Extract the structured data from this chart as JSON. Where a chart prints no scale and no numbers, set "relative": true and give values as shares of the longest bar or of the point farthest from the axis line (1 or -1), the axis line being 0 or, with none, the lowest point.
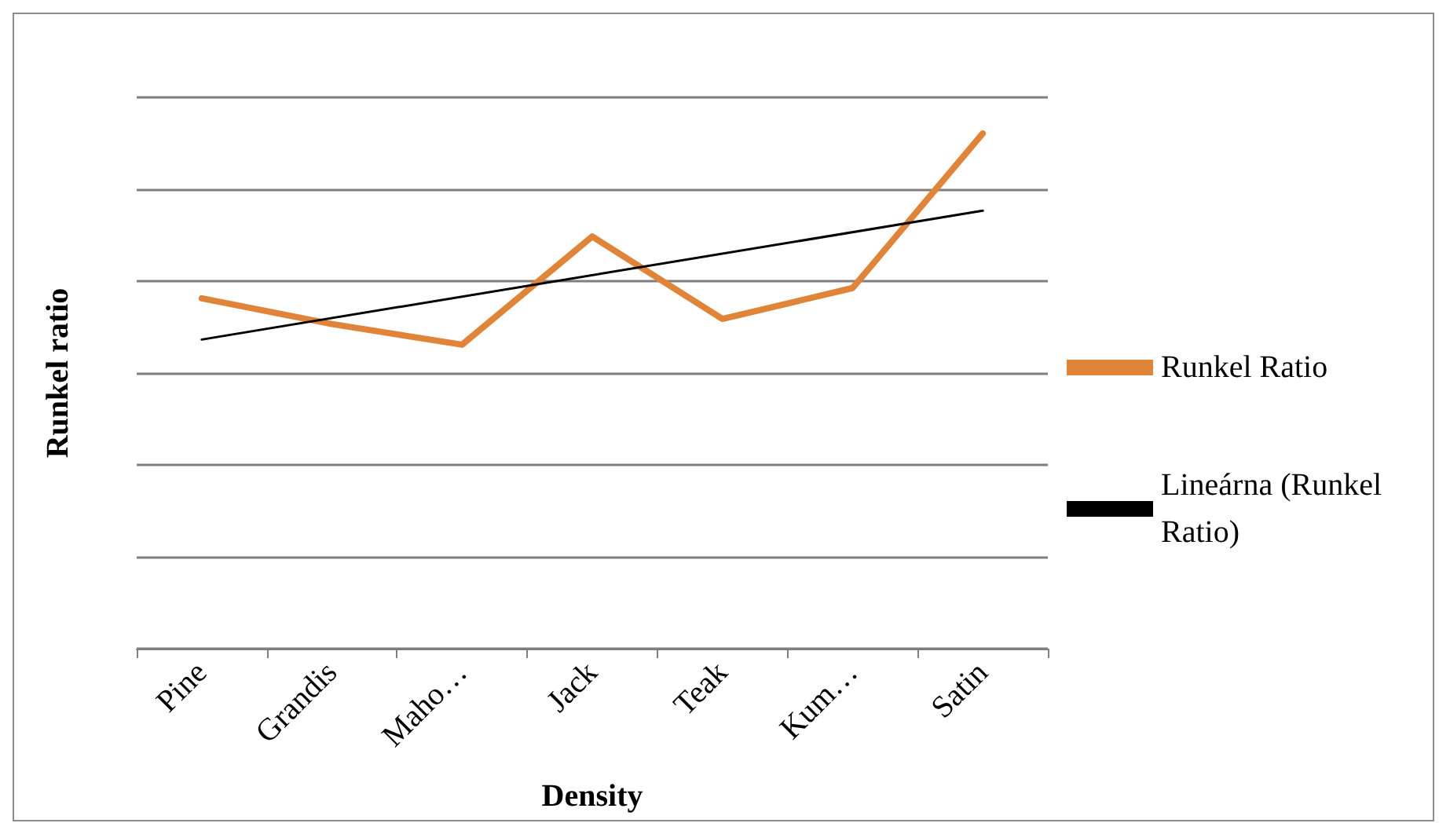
{
  "chart_data": {
    "type": "line",
    "xlabel": "Density",
    "ylabel": "Runkel ratio",
    "categories": [
      "Pine",
      "Grandis",
      "Maho…",
      "Jack",
      "Teak",
      "Kum…",
      "Satin"
    ],
    "relative": true,
    "grid": "y",
    "legend": "right",
    "marker": "none",
    "series": [
      {
        "name": "Runkel Ratio",
        "color": "#e0843a",
        "values": [
          0.68,
          0.63,
          0.59,
          0.8,
          0.64,
          0.7,
          1
        ]
      },
      {
        "name": "Lineárna (Runkel Ratio)",
        "type": "line",
        "color": "#000000",
        "values": [
          0.6,
          null,
          null,
          null,
          null,
          null,
          0.85
        ]
      }
    ]
  }
}
